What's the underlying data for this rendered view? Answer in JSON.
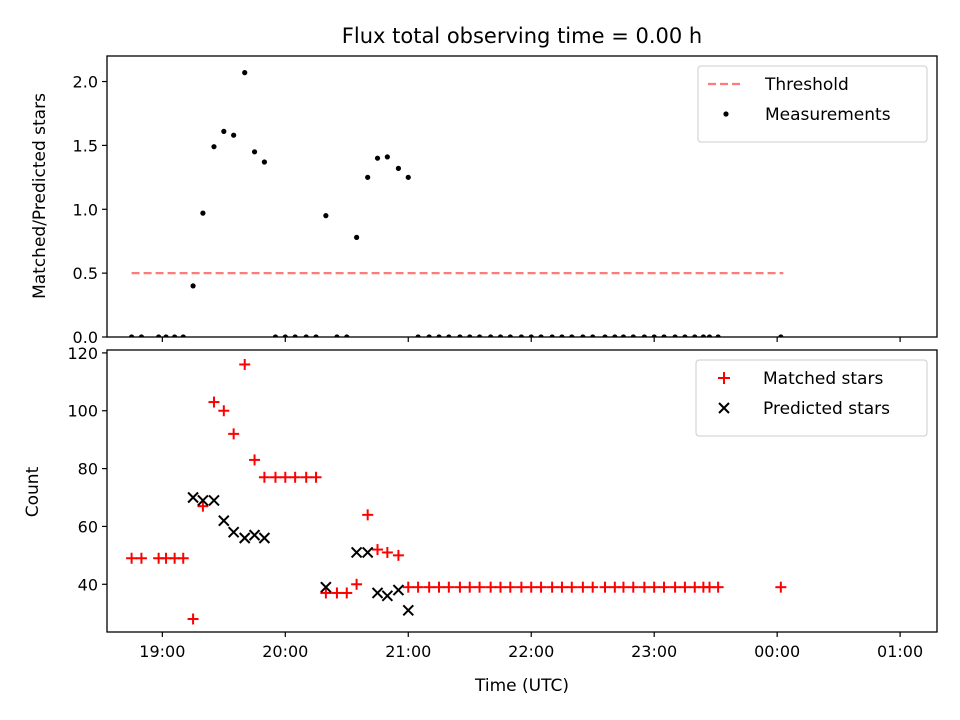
{
  "figure": {
    "title": "Flux total observing time = 0.00 h"
  },
  "chart_data": [
    {
      "type": "scatter",
      "panel": "top",
      "ylabel": "Matched/Predicted stars",
      "ylim": [
        0,
        2.2
      ],
      "xlim": [
        18.55,
        25.3
      ],
      "yticks": [
        0.0,
        0.5,
        1.0,
        1.5,
        2.0
      ],
      "ytick_labels": [
        "0.0",
        "0.5",
        "1.0",
        "1.5",
        "2.0"
      ],
      "legend_position": "top-right",
      "threshold": {
        "name": "Threshold",
        "value": 0.5,
        "x_start": 18.75,
        "x_end": 24.05,
        "color": "#ff7b7b"
      },
      "series": [
        {
          "name": "Measurements",
          "color": "#000000",
          "x": [
            18.75,
            18.83,
            18.97,
            19.03,
            19.1,
            19.17,
            19.25,
            19.33,
            19.42,
            19.5,
            19.58,
            19.67,
            19.75,
            19.83,
            19.92,
            20.0,
            20.08,
            20.17,
            20.25,
            20.33,
            20.42,
            20.5,
            20.58,
            20.67,
            20.75,
            20.83,
            20.92,
            21.0,
            21.08,
            21.17,
            21.25,
            21.33,
            21.42,
            21.5,
            21.58,
            21.67,
            21.75,
            21.83,
            21.92,
            22.0,
            22.08,
            22.17,
            22.25,
            22.33,
            22.42,
            22.5,
            22.6,
            22.68,
            22.75,
            22.83,
            22.92,
            23.0,
            23.08,
            23.17,
            23.25,
            23.33,
            23.4,
            23.45,
            23.52,
            24.03
          ],
          "y": [
            0,
            0,
            0,
            0,
            0,
            0,
            0.4,
            0.97,
            1.49,
            1.61,
            1.58,
            2.07,
            1.45,
            1.37,
            0,
            0,
            0,
            0,
            0,
            0.95,
            0,
            0,
            0.78,
            1.25,
            1.4,
            1.41,
            1.32,
            1.25,
            0,
            0,
            0,
            0,
            0,
            0,
            0,
            0,
            0,
            0,
            0,
            0,
            0,
            0,
            0,
            0,
            0,
            0,
            0,
            0,
            0,
            0,
            0,
            0,
            0,
            0,
            0,
            0,
            0,
            0,
            0,
            0
          ]
        }
      ]
    },
    {
      "type": "scatter",
      "panel": "bottom",
      "xlabel": "Time (UTC)",
      "ylabel": "Count",
      "ylim": [
        23.5,
        121
      ],
      "xlim": [
        18.55,
        25.3
      ],
      "yticks": [
        40,
        60,
        80,
        100,
        120
      ],
      "ytick_labels": [
        "40",
        "60",
        "80",
        "100",
        "120"
      ],
      "xticks": [
        19,
        20,
        21,
        22,
        23,
        24,
        25
      ],
      "xtick_labels": [
        "19:00",
        "20:00",
        "21:00",
        "22:00",
        "23:00",
        "00:00",
        "01:00"
      ],
      "legend_position": "top-right",
      "series": [
        {
          "name": "Matched stars",
          "marker": "plus",
          "color": "#ff0000",
          "x": [
            18.75,
            18.83,
            18.97,
            19.03,
            19.1,
            19.17,
            19.25,
            19.33,
            19.42,
            19.5,
            19.58,
            19.67,
            19.75,
            19.83,
            19.92,
            20.0,
            20.08,
            20.17,
            20.25,
            20.33,
            20.42,
            20.5,
            20.58,
            20.67,
            20.75,
            20.83,
            20.92,
            21.0,
            21.08,
            21.17,
            21.25,
            21.33,
            21.42,
            21.5,
            21.58,
            21.67,
            21.75,
            21.83,
            21.92,
            22.0,
            22.08,
            22.17,
            22.25,
            22.33,
            22.42,
            22.5,
            22.6,
            22.68,
            22.75,
            22.83,
            22.92,
            23.0,
            23.08,
            23.17,
            23.25,
            23.33,
            23.4,
            23.45,
            23.52,
            24.03
          ],
          "y": [
            49,
            49,
            49,
            49,
            49,
            49,
            28,
            67,
            103,
            100,
            92,
            116,
            83,
            77,
            77,
            77,
            77,
            77,
            77,
            37,
            37,
            37,
            40,
            64,
            52,
            51,
            50,
            39,
            39,
            39,
            39,
            39,
            39,
            39,
            39,
            39,
            39,
            39,
            39,
            39,
            39,
            39,
            39,
            39,
            39,
            39,
            39,
            39,
            39,
            39,
            39,
            39,
            39,
            39,
            39,
            39,
            39,
            39,
            39,
            39
          ]
        },
        {
          "name": "Predicted stars",
          "marker": "x",
          "color": "#000000",
          "x": [
            19.25,
            19.33,
            19.42,
            19.5,
            19.58,
            19.67,
            19.75,
            19.83,
            20.33,
            20.58,
            20.67,
            20.75,
            20.83,
            20.92,
            21.0
          ],
          "y": [
            70,
            69,
            69,
            62,
            58,
            56,
            57,
            56,
            39,
            51,
            51,
            37,
            36,
            38,
            31
          ]
        }
      ]
    }
  ]
}
